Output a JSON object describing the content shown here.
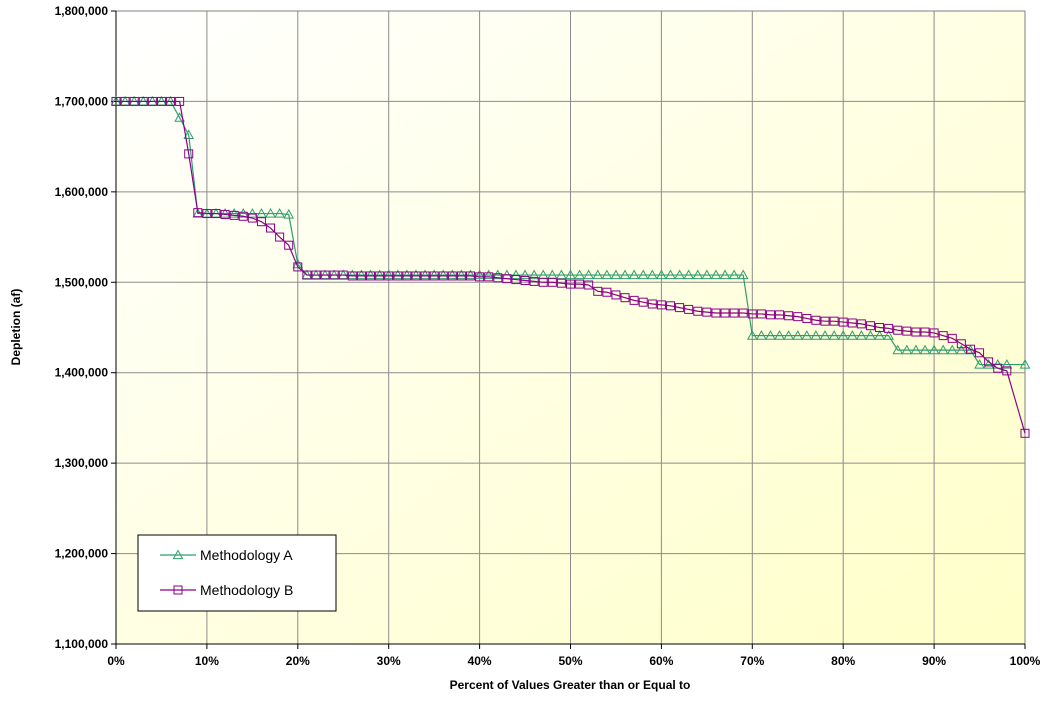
{
  "chart_data": {
    "type": "line",
    "title": "",
    "xlabel": "Percent of Values Greater than or Equal to",
    "ylabel": "Depletion (af)",
    "xlim": [
      0,
      100
    ],
    "ylim": [
      1100000,
      1800000
    ],
    "x_ticks": [
      0,
      10,
      20,
      30,
      40,
      50,
      60,
      70,
      80,
      90,
      100
    ],
    "x_tick_labels": [
      "0%",
      "10%",
      "20%",
      "30%",
      "40%",
      "50%",
      "60%",
      "70%",
      "80%",
      "90%",
      "100%"
    ],
    "y_ticks": [
      1100000,
      1200000,
      1300000,
      1400000,
      1500000,
      1600000,
      1700000,
      1800000
    ],
    "y_tick_labels": [
      "1,100,000",
      "1,200,000",
      "1,300,000",
      "1,400,000",
      "1,500,000",
      "1,600,000",
      "1,700,000",
      "1,800,000"
    ],
    "grid": true,
    "legend_position": "bottom-left",
    "plot_background": [
      "#ffffff",
      "#ffffc8"
    ],
    "x": [
      0,
      1,
      2,
      3,
      4,
      5,
      6,
      7,
      8,
      9,
      10,
      11,
      12,
      13,
      14,
      15,
      16,
      17,
      18,
      19,
      20,
      21,
      22,
      23,
      24,
      25,
      26,
      27,
      28,
      29,
      30,
      31,
      32,
      33,
      34,
      35,
      36,
      37,
      38,
      39,
      40,
      41,
      42,
      43,
      44,
      45,
      46,
      47,
      48,
      49,
      50,
      51,
      52,
      53,
      54,
      55,
      56,
      57,
      58,
      59,
      60,
      61,
      62,
      63,
      64,
      65,
      66,
      67,
      68,
      69,
      70,
      71,
      72,
      73,
      74,
      75,
      76,
      77,
      78,
      79,
      80,
      81,
      82,
      83,
      84,
      85,
      86,
      87,
      88,
      89,
      90,
      91,
      92,
      93,
      94,
      95,
      96,
      97,
      98,
      100
    ],
    "series": [
      {
        "name": "Methodology A",
        "color": "#2e9e6e",
        "marker": "triangle",
        "values": [
          1700000,
          1700000,
          1700000,
          1700000,
          1700000,
          1700000,
          1700000,
          1682000,
          1663000,
          1576000,
          1576000,
          1576000,
          1576000,
          1576000,
          1576000,
          1576000,
          1576000,
          1576000,
          1576000,
          1575000,
          1520000,
          1508000,
          1508000,
          1508000,
          1508000,
          1508000,
          1508000,
          1508000,
          1508000,
          1508000,
          1508000,
          1508000,
          1508000,
          1508000,
          1508000,
          1508000,
          1508000,
          1508000,
          1508000,
          1508000,
          1508000,
          1508000,
          1508000,
          1508000,
          1508000,
          1508000,
          1508000,
          1508000,
          1508000,
          1508000,
          1508000,
          1508000,
          1508000,
          1508000,
          1508000,
          1508000,
          1508000,
          1508000,
          1508000,
          1508000,
          1508000,
          1508000,
          1508000,
          1508000,
          1508000,
          1508000,
          1508000,
          1508000,
          1508000,
          1508000,
          1441000,
          1441000,
          1441000,
          1441000,
          1441000,
          1441000,
          1441000,
          1441000,
          1441000,
          1441000,
          1441000,
          1441000,
          1441000,
          1441000,
          1441000,
          1441000,
          1425000,
          1425000,
          1425000,
          1425000,
          1425000,
          1425000,
          1425000,
          1425000,
          1425000,
          1409000,
          1409000,
          1409000,
          1409000,
          1409000
        ]
      },
      {
        "name": "Methodology B",
        "color": "#8b008b",
        "marker": "square",
        "values": [
          1700000,
          1700000,
          1700000,
          1700000,
          1700000,
          1700000,
          1700000,
          1700000,
          1642000,
          1577000,
          1576000,
          1576000,
          1575000,
          1574000,
          1573000,
          1571000,
          1567000,
          1560000,
          1550000,
          1541000,
          1517000,
          1508000,
          1508000,
          1508000,
          1508000,
          1508000,
          1507000,
          1507000,
          1507000,
          1507000,
          1507000,
          1507000,
          1507000,
          1507000,
          1507000,
          1507000,
          1507000,
          1507000,
          1507000,
          1507000,
          1506000,
          1506000,
          1505000,
          1504000,
          1503000,
          1502000,
          1501000,
          1500000,
          1500000,
          1499000,
          1498000,
          1498000,
          1497000,
          1490000,
          1489000,
          1486000,
          1483000,
          1480000,
          1478000,
          1476000,
          1475000,
          1474000,
          1472000,
          1470000,
          1468000,
          1467000,
          1466000,
          1466000,
          1466000,
          1466000,
          1465000,
          1465000,
          1464000,
          1464000,
          1463000,
          1462000,
          1460000,
          1458000,
          1457000,
          1457000,
          1456000,
          1455000,
          1454000,
          1452000,
          1450000,
          1449000,
          1447000,
          1446000,
          1445000,
          1445000,
          1444000,
          1441000,
          1438000,
          1432000,
          1426000,
          1422000,
          1412000,
          1405000,
          1402000,
          1333000
        ]
      }
    ]
  }
}
